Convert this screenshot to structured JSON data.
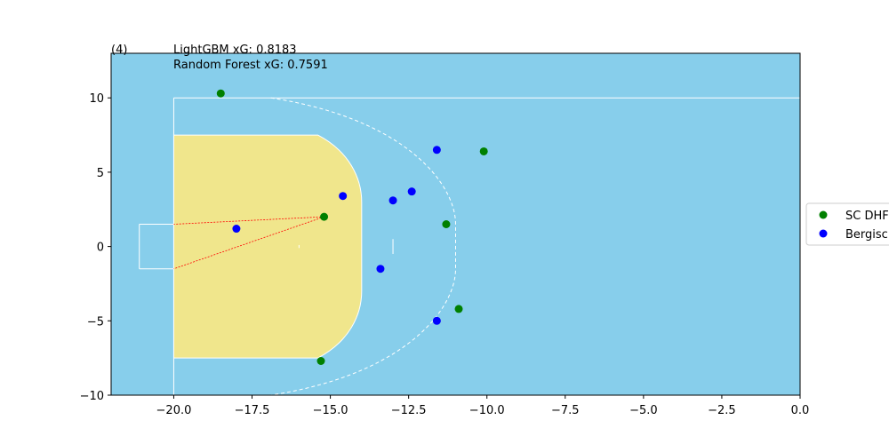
{
  "chart_data": {
    "type": "scatter",
    "title": "",
    "xlabel": "",
    "ylabel": "",
    "xlim": [
      -22,
      0
    ],
    "ylim": [
      -10,
      13
    ],
    "xticks": [
      -20.0,
      -17.5,
      -15.0,
      -12.5,
      -10.0,
      -7.5,
      -5.0,
      -2.5,
      0.0
    ],
    "xtick_labels": [
      "−20.0",
      "−17.5",
      "−15.0",
      "−12.5",
      "−10.0",
      "−7.5",
      "−5.0",
      "−2.5",
      "0.0"
    ],
    "yticks": [
      -10,
      -5,
      0,
      5,
      10
    ],
    "ytick_labels": [
      "−10",
      "−5",
      "0",
      "5",
      "10"
    ],
    "grid": false,
    "background_color": "#87ceeb",
    "area_color": "#f0e68c",
    "annotations": {
      "index": "(4)",
      "lightgbm": "LightGBM xG: 0.8183",
      "random_forest": "Random Forest xG: 0.7591"
    },
    "shot": {
      "x": -15.2,
      "y": 2.0
    },
    "posts": [
      {
        "x": -20.0,
        "y": 1.5
      },
      {
        "x": -20.0,
        "y": -1.5
      }
    ],
    "legend": {
      "placement": "right",
      "entries": [
        "SC DHF",
        "Bergisc"
      ]
    },
    "series": [
      {
        "name": "SC DHF",
        "color": "#008000",
        "points": [
          {
            "x": -18.5,
            "y": 10.3
          },
          {
            "x": -10.1,
            "y": 6.4
          },
          {
            "x": -15.2,
            "y": 2.0
          },
          {
            "x": -11.3,
            "y": 1.5
          },
          {
            "x": -10.9,
            "y": -4.2
          },
          {
            "x": -15.3,
            "y": -7.7
          }
        ]
      },
      {
        "name": "Bergisc",
        "color": "#0000ff",
        "points": [
          {
            "x": -11.6,
            "y": 6.5
          },
          {
            "x": -14.6,
            "y": 3.4
          },
          {
            "x": -12.4,
            "y": 3.7
          },
          {
            "x": -13.0,
            "y": 3.1
          },
          {
            "x": -18.0,
            "y": 1.2
          },
          {
            "x": -13.4,
            "y": -1.5
          },
          {
            "x": -11.6,
            "y": -5.0
          }
        ]
      }
    ]
  }
}
